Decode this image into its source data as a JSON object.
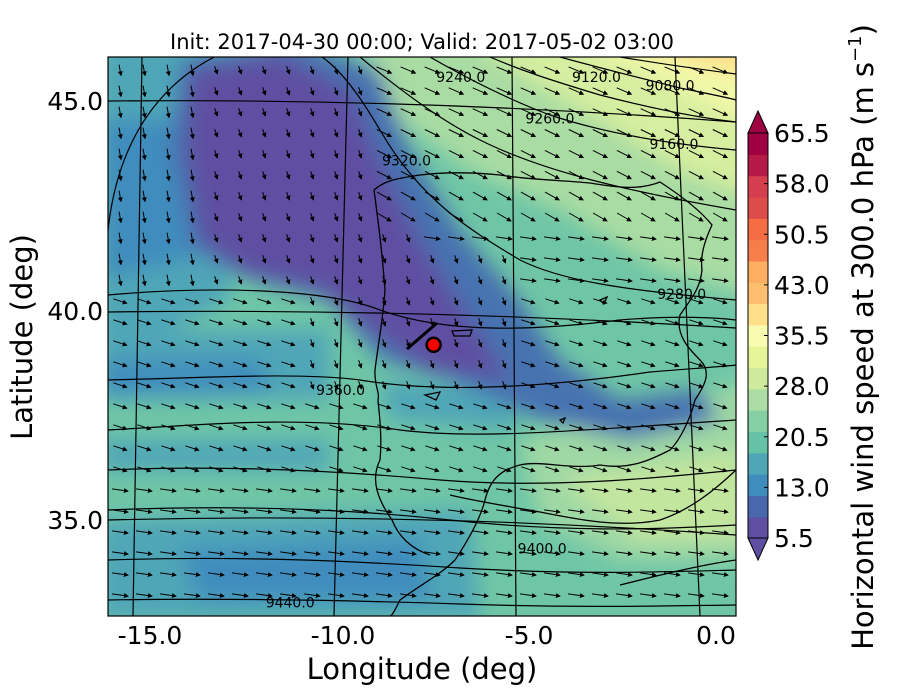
{
  "chart_data": {
    "type": "heatmap",
    "title": "Init: 2017-04-30 00:00; Valid: 2017-05-02 03:00",
    "xlabel": "Longitude (deg)",
    "ylabel": "Latitude (deg)",
    "xlim": [
      -16.0,
      0.2
    ],
    "ylim": [
      32.8,
      46.2
    ],
    "x_ticks": [
      "-15.0",
      "-10.0",
      "-5.0",
      "0.0"
    ],
    "x_tick_values": [
      -15.0,
      -10.0,
      -5.0,
      0.0
    ],
    "y_ticks": [
      "35.0",
      "40.0",
      "45.0"
    ],
    "y_tick_values": [
      35.0,
      40.0,
      45.0
    ],
    "colorbar": {
      "label": "Horizontal wind speed at 300.0 hPa (m s",
      "label_sup": "−1",
      "label_end": ")",
      "ticks": [
        "65.5",
        "58.0",
        "50.5",
        "43.0",
        "35.5",
        "28.0",
        "20.5",
        "13.0",
        "5.5"
      ],
      "range": [
        5.5,
        65.5
      ],
      "colors": [
        "#5e4fa2",
        "#4867ac",
        "#3f8dbd",
        "#4ea6b6",
        "#66c2a5",
        "#85cfa4",
        "#abdda4",
        "#cdea9d",
        "#e6f598",
        "#f7fcb0",
        "#fee08b",
        "#fdbe6f",
        "#fdae61",
        "#f67e4b",
        "#f46d43",
        "#dc4c4b",
        "#d53e4f",
        "#b31a48",
        "#9e0142"
      ]
    },
    "contours": [
      {
        "label": "9080.0",
        "lon": -1.5,
        "lat": 45.4
      },
      {
        "label": "9120.0",
        "lon": -3.4,
        "lat": 45.6
      },
      {
        "label": "9160.0",
        "lon": -1.4,
        "lat": 44.0
      },
      {
        "label": "9240.0",
        "lon": -6.9,
        "lat": 45.6
      },
      {
        "label": "9260.0",
        "lon": -4.6,
        "lat": 44.6
      },
      {
        "label": "9280.0",
        "lon": -1.2,
        "lat": 40.4
      },
      {
        "label": "9320.0",
        "lon": -8.3,
        "lat": 43.6
      },
      {
        "label": "9360.0",
        "lon": -10.0,
        "lat": 38.1
      },
      {
        "label": "9400.0",
        "lon": -4.8,
        "lat": 34.3
      },
      {
        "label": "9440.0",
        "lon": -11.3,
        "lat": 33.0
      }
    ],
    "marker": {
      "lon": -7.6,
      "lat": 39.3,
      "color": "#ff0000"
    }
  }
}
